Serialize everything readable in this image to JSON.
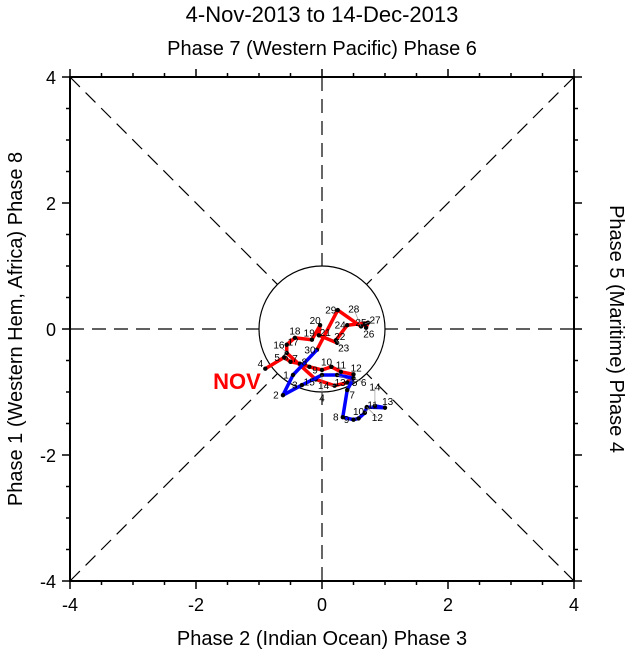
{
  "chart_data": {
    "type": "line",
    "title": "4-Nov-2013 to 14-Dec-2013",
    "top_label": "Phase 7 (Western Pacific) Phase 6",
    "xlabel": "Phase 2 (Indian Ocean) Phase 3",
    "ylabel": "Phase 1 (Western Hem, Africa) Phase 8",
    "right_label": "Phase 5 (Maritime) Phase 4",
    "xlim": [
      -4,
      4
    ],
    "ylim": [
      -4,
      4
    ],
    "xticks": [
      "-4",
      "-2",
      "0",
      "2",
      "4"
    ],
    "yticks": [
      "-4",
      "-2",
      "0",
      "2",
      "4"
    ],
    "month_label": "NOV",
    "series": [
      {
        "name": "Nov",
        "color": "#ff0000",
        "days": [
          4,
          5,
          6,
          7,
          8,
          9,
          10,
          11,
          12,
          13,
          14,
          15,
          16,
          17,
          18,
          19,
          20,
          21,
          22,
          23,
          24,
          25,
          26,
          27,
          28,
          29,
          30
        ],
        "x": [
          -0.9,
          -0.6,
          -0.5,
          -0.35,
          -0.2,
          0.0,
          0.15,
          0.3,
          0.5,
          0.4,
          0.2,
          -0.1,
          -0.56,
          -0.56,
          -0.43,
          -0.16,
          -0.03,
          -0.05,
          0.24,
          0.22,
          0.4,
          0.73,
          0.7,
          0.68,
          0.62,
          0.25,
          -0.08
        ],
        "y": [
          -0.63,
          -0.45,
          -0.52,
          -0.55,
          -0.6,
          -0.65,
          -0.6,
          -0.68,
          -0.72,
          -0.85,
          -0.9,
          -0.8,
          -0.38,
          -0.25,
          -0.14,
          -0.17,
          0.06,
          -0.1,
          -0.22,
          -0.18,
          0.06,
          0.1,
          0.02,
          0.08,
          0.04,
          0.3,
          -0.33
        ]
      },
      {
        "name": "Dec",
        "color": "#0000ff",
        "days": [
          1,
          2,
          3,
          4,
          5,
          6,
          7,
          8,
          9,
          10,
          11,
          12,
          13,
          14
        ],
        "x": [
          -0.46,
          -0.62,
          -0.32,
          0.0,
          0.24,
          0.5,
          0.4,
          0.33,
          0.5,
          0.58,
          0.68,
          0.71,
          1.0,
          0.84
        ],
        "y": [
          -0.73,
          -1.05,
          -0.89,
          -0.73,
          -0.73,
          -0.78,
          -0.97,
          -1.4,
          -1.44,
          -1.42,
          -1.33,
          -1.24,
          -1.25,
          -1.22
        ]
      }
    ]
  }
}
